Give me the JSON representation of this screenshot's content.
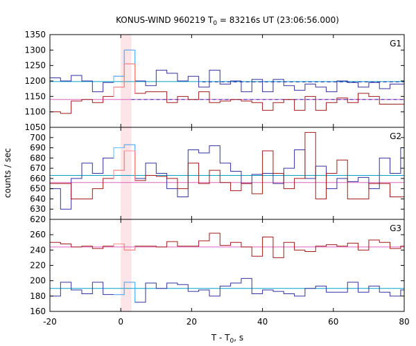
{
  "chart_data": {
    "type": "line",
    "title": "KONUS-WIND 960219 T",
    "title_sub": "0",
    "title_rest": " = 83216s UT (23:06:56.000)",
    "xlabel": "T - T",
    "xlabel_sub": "0",
    "xlabel_rest": ", s",
    "ylabel": "counts / sec",
    "xlim": [
      -20,
      80
    ],
    "x_ticks": [
      -20,
      0,
      20,
      40,
      60,
      80
    ],
    "x_tick_labels": [
      "-20",
      "0",
      "20",
      "40",
      "60",
      "80"
    ],
    "highlight_band": [
      0,
      3
    ],
    "bin_edges": [
      -20,
      -17,
      -14,
      -11,
      -8,
      -5,
      -2,
      1,
      4,
      7,
      10,
      13,
      16,
      19,
      22,
      25,
      28,
      31,
      34,
      37,
      40,
      43,
      46,
      49,
      52,
      55,
      58,
      61,
      64,
      67,
      70,
      73,
      76,
      79,
      80
    ],
    "panels": [
      {
        "label": "G1",
        "ylim": [
          1050,
          1350
        ],
        "y_ticks": [
          1050,
          1100,
          1150,
          1200,
          1250,
          1300,
          1350
        ],
        "y_tick_labels": [
          "1050",
          "1100",
          "1150",
          "1200",
          "1250",
          "1300",
          "1350"
        ],
        "reference_lines": [
          {
            "y": 1198,
            "color": "#00a0c8",
            "style": "solid"
          },
          {
            "y": 1140,
            "color": "#e060c0",
            "style": "solid"
          },
          {
            "y": 1197,
            "x_from": 23,
            "color": "#2a2ab0",
            "style": "dashed"
          },
          {
            "y": 1140,
            "x_from": 3,
            "color": "#2a2ab0",
            "style": "dashed"
          }
        ],
        "series": [
          {
            "color": "#3030a0",
            "highlight_color": "#60c0ff",
            "values": [
              1210,
              1200,
              1218,
              1200,
              1165,
              1195,
              1215,
              1300,
              1200,
              1185,
              1235,
              1225,
              1200,
              1215,
              1180,
              1235,
              1190,
              1200,
              1165,
              1205,
              1165,
              1205,
              1185,
              1170,
              1190,
              1180,
              1165,
              1200,
              1195,
              1180,
              1195,
              1175,
              1190,
              1190
            ]
          },
          {
            "color": "#a01818",
            "highlight_color": "#ff9090",
            "values": [
              1100,
              1095,
              1135,
              1140,
              1130,
              1150,
              1180,
              1255,
              1160,
              1165,
              1165,
              1130,
              1150,
              1140,
              1165,
              1130,
              1135,
              1140,
              1135,
              1130,
              1105,
              1130,
              1140,
              1105,
              1150,
              1105,
              1130,
              1145,
              1130,
              1160,
              1150,
              1125,
              1125,
              1125
            ]
          }
        ]
      },
      {
        "label": "G2",
        "ylim": [
          620,
          710
        ],
        "y_ticks": [
          620,
          630,
          640,
          650,
          660,
          670,
          680,
          690,
          700
        ],
        "y_tick_labels": [
          "620",
          "630",
          "640",
          "650",
          "660",
          "670",
          "680",
          "690",
          "700"
        ],
        "reference_lines": [
          {
            "y": 663,
            "color": "#00a0c8",
            "style": "solid"
          },
          {
            "y": 656,
            "color": "#e060c0",
            "style": "solid"
          }
        ],
        "series": [
          {
            "color": "#3030a0",
            "highlight_color": "#60c0ff",
            "values": [
              650,
              630,
              660,
              675,
              665,
              680,
              690,
              693,
              660,
              675,
              665,
              650,
              642,
              688,
              685,
              692,
              675,
              667,
              655,
              664,
              665,
              655,
              670,
              688,
              660,
              672,
              650,
              660,
              657,
              661,
              650,
              680,
              665,
              690
            ]
          },
          {
            "color": "#a01818",
            "highlight_color": "#ff9090",
            "values": [
              655,
              655,
              640,
              640,
              650,
              660,
              668,
              687,
              658,
              663,
              662,
              660,
              650,
              675,
              655,
              668,
              656,
              648,
              655,
              645,
              687,
              665,
              650,
              660,
              705,
              640,
              665,
              678,
              640,
              640,
              655,
              655,
              642,
              642
            ]
          }
        ]
      },
      {
        "label": "G3",
        "ylim": [
          160,
          280
        ],
        "y_ticks": [
          160,
          180,
          200,
          220,
          240,
          260
        ],
        "y_tick_labels": [
          "160",
          "180",
          "200",
          "220",
          "240",
          "260"
        ],
        "reference_lines": [
          {
            "y": 190,
            "color": "#00a0c8",
            "style": "solid"
          },
          {
            "y": 244,
            "color": "#e060c0",
            "style": "solid"
          }
        ],
        "series": [
          {
            "color": "#3030a0",
            "highlight_color": "#60c0ff",
            "values": [
              180,
              198,
              188,
              183,
              198,
              182,
              182,
              198,
              172,
              197,
              190,
              197,
              195,
              186,
              188,
              180,
              193,
              197,
              203,
              183,
              188,
              186,
              183,
              180,
              190,
              193,
              185,
              185,
              198,
              185,
              193,
              185,
              180,
              188
            ]
          },
          {
            "color": "#a01818",
            "highlight_color": "#ff9090",
            "values": [
              250,
              248,
              244,
              245,
              242,
              245,
              248,
              240,
              245,
              245,
              244,
              251,
              245,
              245,
              252,
              262,
              246,
              250,
              244,
              232,
              257,
              230,
              250,
              240,
              238,
              245,
              247,
              245,
              249,
              240,
              253,
              250,
              242,
              245
            ]
          }
        ]
      }
    ]
  }
}
